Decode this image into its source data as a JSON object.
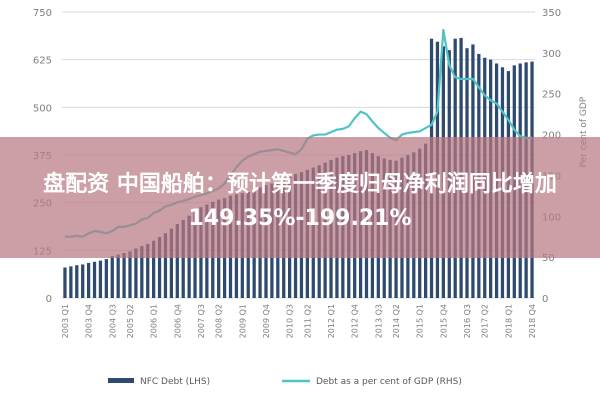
{
  "overlay": {
    "line1": "盘配资 中国船舶：预计第一季度归母净利润同比增加",
    "line2": "149.35%-199.21%"
  },
  "colors": {
    "bar": "#2e4a6e",
    "line": "#4fc3c7",
    "grid": "#d9d9d9",
    "axis_text": "#7f7f7f",
    "banner": "#b97882"
  },
  "chart_data": {
    "type": "bar",
    "xlabel": "",
    "ylabel_left": "",
    "ylabel_right": "Per cent of GDP",
    "left_axis": {
      "min": 0,
      "max": 750,
      "ticks": [
        "0",
        "125",
        "250",
        "375",
        "500",
        "625",
        "750"
      ]
    },
    "right_axis": {
      "min": 0,
      "max": 350,
      "ticks": [
        "0",
        "50",
        "100",
        "150",
        "200",
        "250",
        "300",
        "350"
      ]
    },
    "x_tick_labels": [
      "2003 Q1",
      "2003 Q4",
      "2004 Q3",
      "2005 Q2",
      "2006 Q1",
      "2006 Q4",
      "2007 Q3",
      "2008 Q2",
      "2009 Q1",
      "2009 Q4",
      "2010 Q3",
      "2011 Q2",
      "2012 Q1",
      "2012 Q4",
      "2013 Q3",
      "2014 Q2",
      "2015 Q1",
      "2015 Q4",
      "2016 Q3",
      "2017 Q2",
      "2018 Q1",
      "2018 Q4"
    ],
    "series": [
      {
        "name": "NFC Debt (LHS)",
        "type": "bar",
        "axis": "left",
        "values": [
          80,
          83,
          86,
          88,
          92,
          95,
          98,
          102,
          110,
          114,
          118,
          122,
          130,
          136,
          142,
          150,
          160,
          170,
          182,
          194,
          205,
          216,
          228,
          238,
          245,
          252,
          258,
          262,
          268,
          272,
          275,
          278,
          285,
          290,
          296,
          300,
          306,
          312,
          318,
          325,
          330,
          336,
          342,
          348,
          355,
          362,
          368,
          372,
          375,
          380,
          385,
          388,
          380,
          372,
          366,
          362,
          360,
          368,
          375,
          382,
          392,
          405,
          680,
          672,
          660,
          650,
          680,
          682,
          655,
          665,
          640,
          630,
          625,
          615,
          605,
          595,
          610,
          615,
          618,
          620
        ]
      },
      {
        "name": "Debt as a per cent of GDP (RHS)",
        "type": "line",
        "axis": "right",
        "values": [
          75,
          75,
          76,
          75,
          79,
          82,
          81,
          79,
          82,
          87,
          87,
          89,
          91,
          96,
          98,
          104,
          107,
          112,
          114,
          117,
          119,
          121,
          124,
          126,
          128,
          131,
          134,
          140,
          150,
          160,
          168,
          173,
          176,
          179,
          180,
          181,
          182,
          180,
          178,
          176,
          182,
          195,
          199,
          200,
          200,
          203,
          206,
          207,
          210,
          220,
          228,
          225,
          216,
          208,
          202,
          196,
          193,
          200,
          202,
          203,
          204,
          208,
          212,
          228,
          328,
          285,
          270,
          268,
          268,
          268,
          258,
          248,
          242,
          238,
          228,
          218,
          206,
          198,
          196,
          196
        ]
      }
    ],
    "legend": {
      "placement": "bottom"
    }
  }
}
